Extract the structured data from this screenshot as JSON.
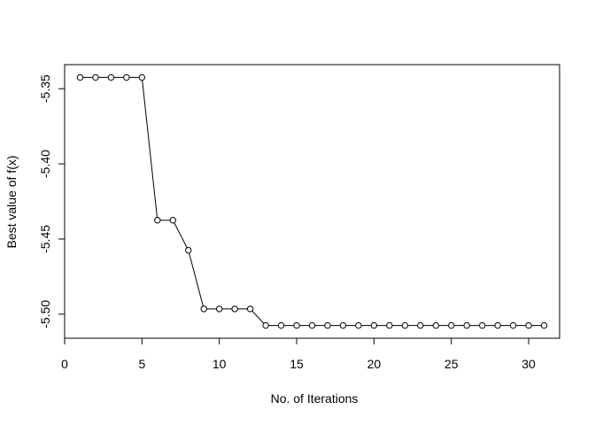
{
  "chart_data": {
    "type": "line",
    "xlabel": "No. of Iterations",
    "ylabel": "Best value of f(x)",
    "xlim": [
      0,
      32
    ],
    "ylim": [
      -5.516,
      -5.334
    ],
    "xticks": [
      0,
      5,
      10,
      15,
      20,
      25,
      30
    ],
    "yticks": [
      -5.35,
      -5.4,
      -5.45,
      -5.5
    ],
    "ytick_labels": [
      "-5.35",
      "-5.40",
      "-5.45",
      "-5.50"
    ],
    "markers": "open-circle",
    "series": [
      {
        "x": [
          1,
          2,
          3,
          4,
          5,
          6,
          7,
          8,
          9,
          10,
          11,
          12,
          13,
          14,
          15,
          16,
          17,
          18,
          19,
          20,
          21,
          22,
          23,
          24,
          25,
          26,
          27,
          28,
          29,
          30,
          31
        ],
        "values": [
          -5.3425,
          -5.3425,
          -5.3425,
          -5.3425,
          -5.3425,
          -5.4375,
          -5.4375,
          -5.4575,
          -5.4965,
          -5.4965,
          -5.4965,
          -5.4965,
          -5.5075,
          -5.5075,
          -5.5075,
          -5.5075,
          -5.5075,
          -5.5075,
          -5.5075,
          -5.5075,
          -5.5075,
          -5.5075,
          -5.5075,
          -5.5075,
          -5.5075,
          -5.5075,
          -5.5075,
          -5.5075,
          -5.5075,
          -5.5075,
          -5.5075
        ]
      }
    ]
  }
}
